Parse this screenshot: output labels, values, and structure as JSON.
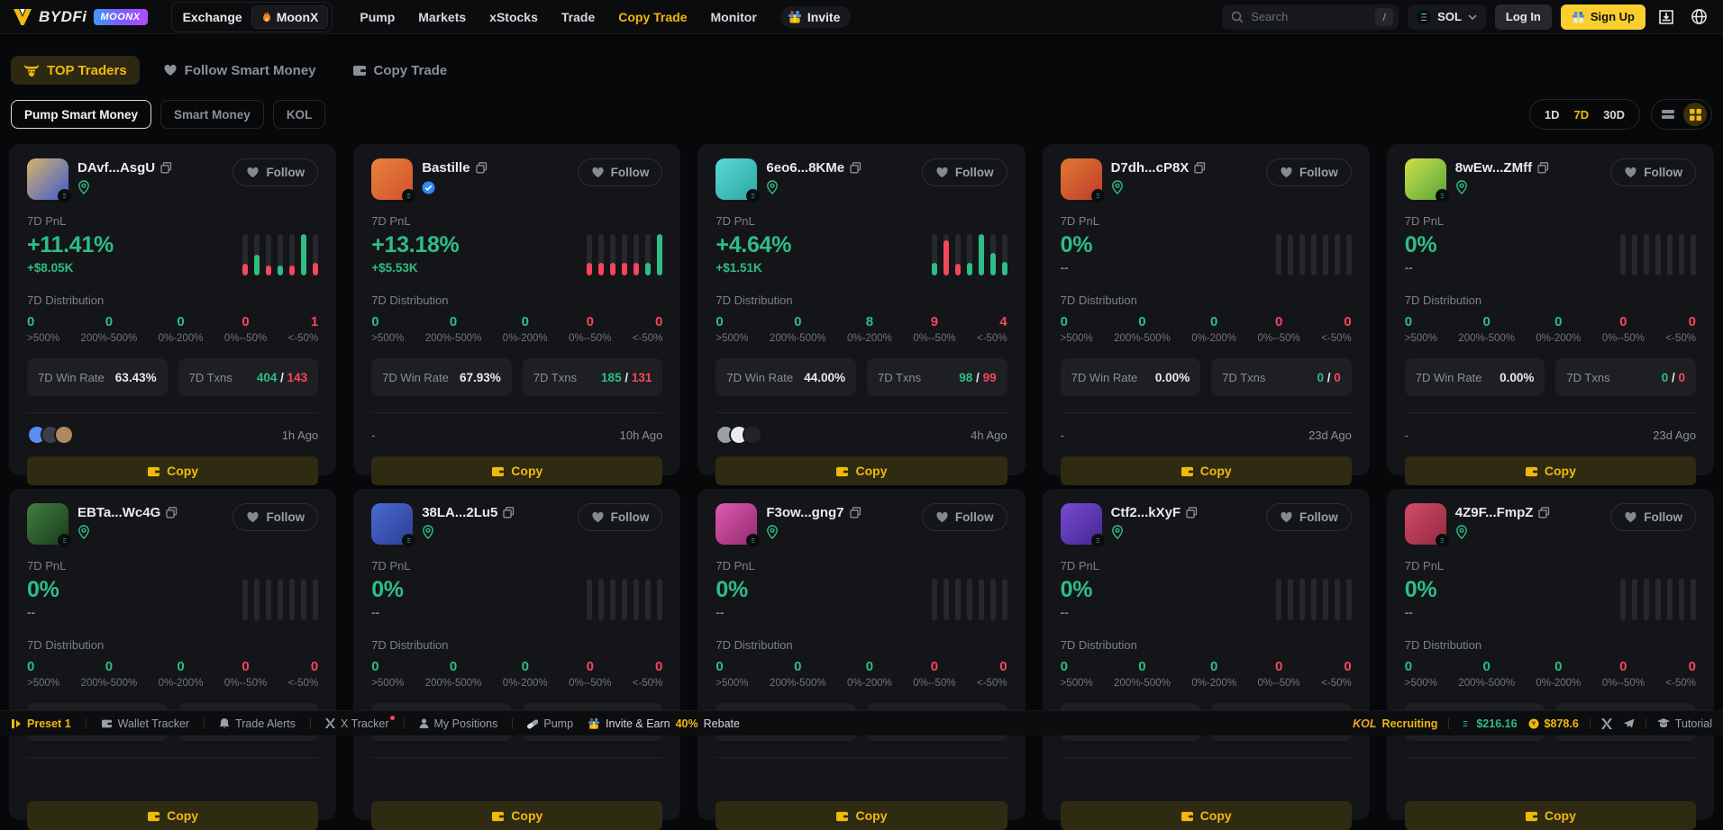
{
  "header": {
    "brand": "BYDFi",
    "brand_badge": "MOONX",
    "group": {
      "exchange": "Exchange",
      "moonx": "MoonX"
    },
    "nav": [
      {
        "label": "Pump",
        "active": false
      },
      {
        "label": "Markets",
        "active": false
      },
      {
        "label": "xStocks",
        "active": false
      },
      {
        "label": "Trade",
        "active": false
      },
      {
        "label": "Copy Trade",
        "active": true
      },
      {
        "label": "Monitor",
        "active": false
      }
    ],
    "invite_label": "Invite",
    "search": {
      "placeholder": "Search",
      "shortcut": "/"
    },
    "chain": "SOL",
    "login_label": "Log In",
    "signup_label": "Sign Up"
  },
  "tabs": [
    {
      "label": "TOP Traders",
      "active": true
    },
    {
      "label": "Follow Smart Money",
      "active": false
    },
    {
      "label": "Copy Trade",
      "active": false
    }
  ],
  "subtabs": [
    {
      "label": "Pump Smart Money",
      "active": true
    },
    {
      "label": "Smart Money",
      "active": false
    },
    {
      "label": "KOL",
      "active": false
    }
  ],
  "range": {
    "d1": "1D",
    "d7": "7D",
    "d30": "30D",
    "active": "7D"
  },
  "card_labels": {
    "follow": "Follow",
    "pnl": "7D PnL",
    "dist": "7D Distribution",
    "bins": [
      ">500%",
      "200%-500%",
      "0%-200%",
      "0%--50%",
      "<-50%"
    ],
    "win": "7D Win Rate",
    "txns": "7D Txns",
    "slash": "/",
    "copy": "Copy"
  },
  "colors": {
    "green": "#2ebd85",
    "red": "#f6465d",
    "yellow": "#f0b90b"
  },
  "cards": [
    {
      "name": "DAvf...AsgU",
      "badge": "pin",
      "pnl_pct": "+11.41%",
      "pnl_usd": "+$8.05K",
      "pnl_usd_color": "green",
      "dist": [
        {
          "v": "0",
          "c": "green"
        },
        {
          "v": "0",
          "c": "green"
        },
        {
          "v": "0",
          "c": "green"
        },
        {
          "v": "0",
          "c": "red"
        },
        {
          "v": "1",
          "c": "red"
        }
      ],
      "win": "63.43%",
      "txn_win": "404",
      "txn_loss": "143",
      "time": "1h Ago",
      "bottom_left": "",
      "tokens": [
        "#5b8def",
        "#3c4046",
        "#b0895e"
      ],
      "chart": [
        {
          "h": 0.28,
          "c": "r"
        },
        {
          "h": 0.5,
          "c": "g"
        },
        {
          "h": 0.25,
          "c": "r"
        },
        {
          "h": 0.25,
          "c": "g"
        },
        {
          "h": 0.25,
          "c": "r"
        },
        {
          "h": 1,
          "c": "g"
        },
        {
          "h": 0.3,
          "c": "r"
        }
      ],
      "avatar": [
        "#d8b36a",
        "#3b5bd0"
      ]
    },
    {
      "name": "Bastille",
      "badge": "verified",
      "pnl_pct": "+13.18%",
      "pnl_usd": "+$5.53K",
      "pnl_usd_color": "green",
      "dist": [
        {
          "v": "0",
          "c": "green"
        },
        {
          "v": "0",
          "c": "green"
        },
        {
          "v": "0",
          "c": "green"
        },
        {
          "v": "0",
          "c": "red"
        },
        {
          "v": "0",
          "c": "red"
        }
      ],
      "win": "67.93%",
      "txn_win": "185",
      "txn_loss": "131",
      "time": "10h Ago",
      "bottom_left": "-",
      "tokens": [],
      "chart": [
        {
          "h": 0.3,
          "c": "r"
        },
        {
          "h": 0.3,
          "c": "r"
        },
        {
          "h": 0.3,
          "c": "r"
        },
        {
          "h": 0.3,
          "c": "r"
        },
        {
          "h": 0.3,
          "c": "r"
        },
        {
          "h": 0.3,
          "c": "g"
        },
        {
          "h": 1,
          "c": "g"
        }
      ],
      "avatar": [
        "#e8833a",
        "#d34f2f"
      ]
    },
    {
      "name": "6eo6...8KMe",
      "badge": "pin",
      "pnl_pct": "+4.64%",
      "pnl_usd": "+$1.51K",
      "pnl_usd_color": "green",
      "dist": [
        {
          "v": "0",
          "c": "green"
        },
        {
          "v": "0",
          "c": "green"
        },
        {
          "v": "8",
          "c": "green"
        },
        {
          "v": "9",
          "c": "red"
        },
        {
          "v": "4",
          "c": "red"
        }
      ],
      "win": "44.00%",
      "txn_win": "98",
      "txn_loss": "99",
      "time": "4h Ago",
      "bottom_left": "",
      "tokens": [
        "#9aa0a6",
        "#e8eaed",
        "#22242a"
      ],
      "chart": [
        {
          "h": 0.3,
          "c": "g"
        },
        {
          "h": 0.85,
          "c": "r"
        },
        {
          "h": 0.28,
          "c": "r"
        },
        {
          "h": 0.3,
          "c": "g"
        },
        {
          "h": 1,
          "c": "g"
        },
        {
          "h": 0.55,
          "c": "g"
        },
        {
          "h": 0.32,
          "c": "g"
        }
      ],
      "avatar": [
        "#59d8d8",
        "#2aa7a0"
      ]
    },
    {
      "name": "D7dh...cP8X",
      "badge": "pin",
      "pnl_pct": "0%",
      "pnl_usd": "--",
      "pnl_usd_color": "mutedval",
      "dist": [
        {
          "v": "0",
          "c": "green"
        },
        {
          "v": "0",
          "c": "green"
        },
        {
          "v": "0",
          "c": "green"
        },
        {
          "v": "0",
          "c": "red"
        },
        {
          "v": "0",
          "c": "red"
        }
      ],
      "win": "0.00%",
      "txn_win": "0",
      "txn_loss": "0",
      "time": "23d Ago",
      "bottom_left": "-",
      "tokens": [],
      "chart": [
        {
          "h": 0,
          "c": "g"
        },
        {
          "h": 0,
          "c": "g"
        },
        {
          "h": 0,
          "c": "g"
        },
        {
          "h": 0,
          "c": "g"
        },
        {
          "h": 0,
          "c": "g"
        },
        {
          "h": 0,
          "c": "g"
        },
        {
          "h": 0,
          "c": "g"
        }
      ],
      "avatar": [
        "#e0792f",
        "#c03c2e"
      ]
    },
    {
      "name": "8wEw...ZMff",
      "badge": "pin",
      "pnl_pct": "0%",
      "pnl_usd": "--",
      "pnl_usd_color": "mutedval",
      "dist": [
        {
          "v": "0",
          "c": "green"
        },
        {
          "v": "0",
          "c": "green"
        },
        {
          "v": "0",
          "c": "green"
        },
        {
          "v": "0",
          "c": "red"
        },
        {
          "v": "0",
          "c": "red"
        }
      ],
      "win": "0.00%",
      "txn_win": "0",
      "txn_loss": "0",
      "time": "23d Ago",
      "bottom_left": "-",
      "tokens": [],
      "chart": [
        {
          "h": 0,
          "c": "g"
        },
        {
          "h": 0,
          "c": "g"
        },
        {
          "h": 0,
          "c": "g"
        },
        {
          "h": 0,
          "c": "g"
        },
        {
          "h": 0,
          "c": "g"
        },
        {
          "h": 0,
          "c": "g"
        },
        {
          "h": 0,
          "c": "g"
        }
      ],
      "avatar": [
        "#cde04a",
        "#58a53a"
      ]
    },
    {
      "name": "EBTa...Wc4G",
      "badge": "pin",
      "pnl_pct": "0%",
      "pnl_usd": "--",
      "pnl_usd_color": "mutedval",
      "dist": [
        {
          "v": "0",
          "c": "green"
        },
        {
          "v": "0",
          "c": "green"
        },
        {
          "v": "0",
          "c": "green"
        },
        {
          "v": "0",
          "c": "red"
        },
        {
          "v": "0",
          "c": "red"
        }
      ],
      "win": "",
      "txn_win": "",
      "txn_loss": "",
      "time": "",
      "bottom_left": "",
      "tokens": [],
      "chart": [
        {
          "h": 0,
          "c": "g"
        },
        {
          "h": 0,
          "c": "g"
        },
        {
          "h": 0,
          "c": "g"
        },
        {
          "h": 0,
          "c": "g"
        },
        {
          "h": 0,
          "c": "g"
        },
        {
          "h": 0,
          "c": "g"
        },
        {
          "h": 0,
          "c": "g"
        }
      ],
      "avatar": [
        "#3f7f3f",
        "#1d3b1d"
      ]
    },
    {
      "name": "38LA...2Lu5",
      "badge": "pin",
      "pnl_pct": "0%",
      "pnl_usd": "--",
      "pnl_usd_color": "mutedval",
      "dist": [
        {
          "v": "0",
          "c": "green"
        },
        {
          "v": "0",
          "c": "green"
        },
        {
          "v": "0",
          "c": "green"
        },
        {
          "v": "0",
          "c": "red"
        },
        {
          "v": "0",
          "c": "red"
        }
      ],
      "win": "",
      "txn_win": "",
      "txn_loss": "",
      "time": "",
      "bottom_left": "",
      "tokens": [],
      "chart": [
        {
          "h": 0,
          "c": "g"
        },
        {
          "h": 0,
          "c": "g"
        },
        {
          "h": 0,
          "c": "g"
        },
        {
          "h": 0,
          "c": "g"
        },
        {
          "h": 0,
          "c": "g"
        },
        {
          "h": 0,
          "c": "g"
        },
        {
          "h": 0,
          "c": "g"
        }
      ],
      "avatar": [
        "#4a6ad4",
        "#2b3f8f"
      ]
    },
    {
      "name": "F3ow...gng7",
      "badge": "pin",
      "pnl_pct": "0%",
      "pnl_usd": "--",
      "pnl_usd_color": "mutedval",
      "dist": [
        {
          "v": "0",
          "c": "green"
        },
        {
          "v": "0",
          "c": "green"
        },
        {
          "v": "0",
          "c": "green"
        },
        {
          "v": "0",
          "c": "red"
        },
        {
          "v": "0",
          "c": "red"
        }
      ],
      "win": "",
      "txn_win": "",
      "txn_loss": "",
      "time": "",
      "bottom_left": "",
      "tokens": [],
      "chart": [
        {
          "h": 0,
          "c": "g"
        },
        {
          "h": 0,
          "c": "g"
        },
        {
          "h": 0,
          "c": "g"
        },
        {
          "h": 0,
          "c": "g"
        },
        {
          "h": 0,
          "c": "g"
        },
        {
          "h": 0,
          "c": "g"
        },
        {
          "h": 0,
          "c": "g"
        }
      ],
      "avatar": [
        "#e05ab0",
        "#8f2b6f"
      ]
    },
    {
      "name": "Ctf2...kXyF",
      "badge": "pin",
      "pnl_pct": "0%",
      "pnl_usd": "--",
      "pnl_usd_color": "mutedval",
      "dist": [
        {
          "v": "0",
          "c": "green"
        },
        {
          "v": "0",
          "c": "green"
        },
        {
          "v": "0",
          "c": "green"
        },
        {
          "v": "0",
          "c": "red"
        },
        {
          "v": "0",
          "c": "red"
        }
      ],
      "win": "",
      "txn_win": "",
      "txn_loss": "",
      "time": "",
      "bottom_left": "",
      "tokens": [],
      "chart": [
        {
          "h": 0,
          "c": "g"
        },
        {
          "h": 0,
          "c": "g"
        },
        {
          "h": 0,
          "c": "g"
        },
        {
          "h": 0,
          "c": "g"
        },
        {
          "h": 0,
          "c": "g"
        },
        {
          "h": 0,
          "c": "g"
        },
        {
          "h": 0,
          "c": "g"
        }
      ],
      "avatar": [
        "#7a4ad4",
        "#41288f"
      ]
    },
    {
      "name": "4Z9F...FmpZ",
      "badge": "pin",
      "pnl_pct": "0%",
      "pnl_usd": "--",
      "pnl_usd_color": "mutedval",
      "dist": [
        {
          "v": "0",
          "c": "green"
        },
        {
          "v": "0",
          "c": "green"
        },
        {
          "v": "0",
          "c": "green"
        },
        {
          "v": "0",
          "c": "red"
        },
        {
          "v": "0",
          "c": "red"
        }
      ],
      "win": "",
      "txn_win": "",
      "txn_loss": "",
      "time": "",
      "bottom_left": "",
      "tokens": [],
      "chart": [
        {
          "h": 0,
          "c": "g"
        },
        {
          "h": 0,
          "c": "g"
        },
        {
          "h": 0,
          "c": "g"
        },
        {
          "h": 0,
          "c": "g"
        },
        {
          "h": 0,
          "c": "g"
        },
        {
          "h": 0,
          "c": "g"
        },
        {
          "h": 0,
          "c": "g"
        }
      ],
      "avatar": [
        "#d44a6a",
        "#8f2b3f"
      ]
    }
  ],
  "footer": {
    "preset": "Preset 1",
    "wallet_tracker": "Wallet Tracker",
    "trade_alerts": "Trade Alerts",
    "x_tracker": "X Tracker",
    "my_positions": "My Positions",
    "pump": "Pump",
    "invite_earn": "Invite & Earn",
    "rebate_pct": "40%",
    "rebate_word": "Rebate",
    "kol": "KOL",
    "recruiting": "Recruiting",
    "sol_price": "$216.16",
    "token_price": "$878.6",
    "tutorial": "Tutorial"
  }
}
